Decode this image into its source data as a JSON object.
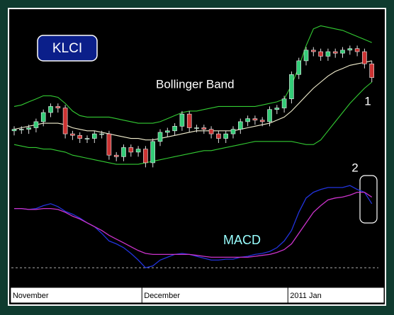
{
  "chart_data": [
    {
      "type": "candlestick",
      "title": "KLCI",
      "annotations": [
        "Bollinger Band",
        "1"
      ],
      "categories": [
        "November",
        null,
        null,
        null,
        null,
        null,
        null,
        null,
        null,
        null,
        null,
        null,
        null,
        null,
        null,
        null,
        null,
        null,
        "December",
        null,
        null,
        null,
        null,
        null,
        null,
        null,
        null,
        null,
        null,
        null,
        null,
        null,
        null,
        null,
        null,
        null,
        null,
        null,
        "2011 Jan",
        null,
        null,
        null,
        null,
        null,
        null,
        null,
        null,
        null,
        null,
        null
      ],
      "open": [
        28,
        29,
        29,
        30,
        34,
        40,
        44,
        43,
        26,
        25,
        23,
        23,
        26,
        26,
        12,
        11,
        17,
        14,
        16,
        7,
        21,
        27,
        28,
        31,
        39,
        30,
        30,
        29,
        26,
        23,
        26,
        29,
        34,
        36,
        35,
        34,
        42,
        43,
        49,
        65,
        74,
        81,
        80,
        77,
        80,
        79,
        81,
        82,
        80,
        72
      ],
      "high": [
        31,
        31,
        32,
        36,
        42,
        46,
        46,
        45,
        28,
        27,
        25,
        28,
        28,
        28,
        14,
        19,
        19,
        18,
        18,
        23,
        29,
        30,
        33,
        41,
        41,
        32,
        32,
        31,
        28,
        28,
        31,
        36,
        38,
        38,
        37,
        44,
        45,
        51,
        67,
        76,
        83,
        83,
        82,
        82,
        82,
        83,
        84,
        84,
        82,
        74
      ],
      "low": [
        25,
        26,
        26,
        27,
        31,
        37,
        40,
        23,
        22,
        20,
        20,
        20,
        23,
        9,
        8,
        8,
        11,
        11,
        4,
        4,
        18,
        24,
        25,
        28,
        27,
        27,
        26,
        23,
        20,
        20,
        23,
        26,
        31,
        32,
        31,
        31,
        39,
        40,
        46,
        62,
        71,
        77,
        74,
        74,
        76,
        76,
        78,
        77,
        69,
        60
      ],
      "close": [
        29,
        29,
        30,
        34,
        40,
        44,
        43,
        26,
        25,
        23,
        23,
        26,
        26,
        12,
        11,
        17,
        14,
        16,
        7,
        21,
        27,
        28,
        31,
        39,
        30,
        30,
        29,
        26,
        23,
        26,
        29,
        34,
        36,
        35,
        34,
        42,
        43,
        49,
        65,
        74,
        81,
        80,
        77,
        80,
        79,
        81,
        82,
        80,
        72,
        63
      ],
      "bands": {
        "upper": [
          44,
          45,
          47,
          49,
          51,
          51,
          50,
          46,
          41,
          38,
          37,
          37,
          37,
          37,
          36,
          35,
          34,
          33,
          33,
          33,
          34,
          36,
          38,
          40,
          41,
          41,
          42,
          43,
          44,
          44,
          44,
          44,
          44,
          44,
          45,
          46,
          47,
          49,
          58,
          70,
          84,
          95,
          97,
          96,
          95,
          94,
          92,
          90,
          88,
          86
        ],
        "middle": [
          29,
          30,
          31,
          32,
          33,
          33,
          33,
          32,
          30,
          29,
          28,
          28,
          27,
          26,
          25,
          24,
          23,
          23,
          22,
          22,
          23,
          24,
          25,
          26,
          27,
          28,
          28,
          28,
          28,
          28,
          28,
          29,
          30,
          31,
          32,
          33,
          35,
          37,
          41,
          46,
          51,
          56,
          60,
          64,
          67,
          69,
          71,
          72,
          73,
          74
        ],
        "lower": [
          19,
          18,
          17,
          17,
          16,
          16,
          15,
          14,
          12,
          11,
          10,
          9,
          8,
          7,
          6,
          6,
          6,
          6,
          7,
          8,
          9,
          10,
          11,
          12,
          13,
          14,
          15,
          15,
          16,
          17,
          18,
          19,
          20,
          21,
          21,
          21,
          21,
          21,
          21,
          20,
          19,
          19,
          22,
          28,
          34,
          40,
          46,
          51,
          56,
          60
        ]
      },
      "band_color": "#33cc33",
      "middle_color": "#f4f0d0",
      "up_color": "#33cc77",
      "down_color": "#cc3333",
      "ylim": [
        0,
        100
      ]
    },
    {
      "type": "line",
      "annotations": [
        "2",
        "MACD"
      ],
      "series": [
        {
          "color": "#2233dd",
          "values": [
            62,
            62,
            61,
            62,
            65,
            67,
            64,
            59,
            56,
            52,
            47,
            43,
            36,
            28,
            25,
            21,
            15,
            8,
            0,
            2,
            8,
            11,
            14,
            15,
            14,
            12,
            10,
            8,
            8,
            9,
            9,
            11,
            12,
            14,
            15,
            17,
            21,
            28,
            39,
            58,
            73,
            79,
            82,
            84,
            84,
            84,
            86,
            82,
            79,
            67
          ]
        },
        {
          "color": "#cc33cc",
          "values": [
            62,
            62,
            61,
            61,
            62,
            62,
            61,
            58,
            54,
            51,
            47,
            43,
            39,
            34,
            30,
            26,
            22,
            18,
            15,
            14,
            14,
            14,
            14,
            14,
            14,
            13,
            12,
            11,
            11,
            11,
            11,
            11,
            11,
            12,
            13,
            14,
            16,
            19,
            25,
            36,
            47,
            58,
            65,
            71,
            73,
            74,
            76,
            79,
            79,
            74
          ]
        }
      ],
      "reference_line": 0,
      "ylim": [
        -5,
        95
      ]
    }
  ]
}
